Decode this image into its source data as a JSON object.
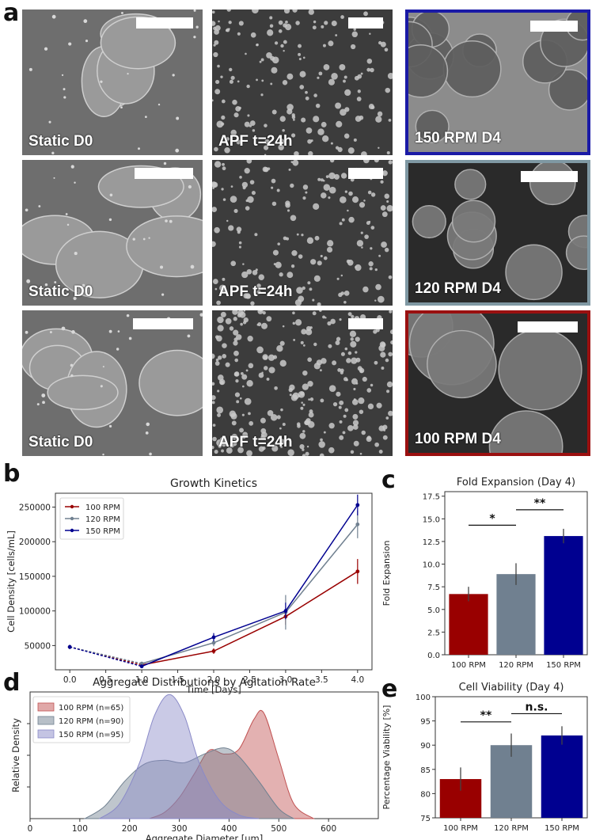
{
  "panel_letters": {
    "a": "a",
    "b": "b",
    "c": "c",
    "d": "d",
    "e": "e"
  },
  "micrographs": [
    {
      "label": "Static D0",
      "border": "none",
      "texture": "colony"
    },
    {
      "label": "APF t=24h",
      "border": "none",
      "texture": "dots"
    },
    {
      "label": "150 RPM D4",
      "border": "#1a1aa6",
      "texture": "spheres"
    },
    {
      "label": "Static D0",
      "border": "none",
      "texture": "colony"
    },
    {
      "label": "APF t=24h",
      "border": "none",
      "texture": "dots"
    },
    {
      "label": "120 RPM D4",
      "border": "#7f98a3",
      "texture": "spheres"
    },
    {
      "label": "Static D0",
      "border": "none",
      "texture": "colony"
    },
    {
      "label": "APF t=24h",
      "border": "none",
      "texture": "dots"
    },
    {
      "label": "100 RPM D4",
      "border": "#9a1010",
      "texture": "spheres"
    }
  ],
  "colors": {
    "rpm100": "#990000",
    "rpm120": "#708090",
    "rpm150": "#000090"
  },
  "chart_data": [
    {
      "id": "b",
      "type": "line",
      "title": "Growth Kinetics",
      "xlabel": "Time [Days]",
      "ylabel": "Cell Density [cells/mL]",
      "x": [
        0,
        1,
        2,
        3,
        4
      ],
      "xticks": [
        "0.0",
        "0.5",
        "1.0",
        "1.5",
        "2.0",
        "2.5",
        "3.0",
        "3.5",
        "4.0"
      ],
      "yticks": [
        "50000",
        "100000",
        "150000",
        "200000",
        "250000"
      ],
      "xlim": [
        -0.2,
        4.2
      ],
      "ylim": [
        15000,
        270000
      ],
      "legend": "top-left",
      "series": [
        {
          "name": "100 RPM",
          "values": [
            48000,
            22000,
            42000,
            92000,
            157000
          ],
          "err": [
            3000,
            2000,
            4000,
            12000,
            18000
          ],
          "color": "#990000"
        },
        {
          "name": "120 RPM",
          "values": [
            48000,
            24000,
            54000,
            98000,
            225000
          ],
          "err": [
            3000,
            2000,
            5000,
            25000,
            20000
          ],
          "color": "#708090"
        },
        {
          "name": "150 RPM",
          "values": [
            48000,
            20000,
            62000,
            100000,
            253000
          ],
          "err": [
            3000,
            2000,
            6000,
            12000,
            15000
          ],
          "color": "#000090"
        }
      ]
    },
    {
      "id": "c",
      "type": "bar",
      "title": "Fold Expansion (Day 4)",
      "ylabel": "Fold Expansion",
      "categories": [
        "100 RPM",
        "120 RPM",
        "150 RPM"
      ],
      "values": [
        6.7,
        8.9,
        13.1
      ],
      "err": [
        0.8,
        1.2,
        0.8
      ],
      "colors": [
        "#990000",
        "#708090",
        "#000090"
      ],
      "yticks": [
        "0.0",
        "2.5",
        "5.0",
        "7.5",
        "10.0",
        "12.5",
        "15.0",
        "17.5"
      ],
      "ylim": [
        0,
        18
      ],
      "annotations": [
        {
          "from": 0,
          "to": 1,
          "y": 14.3,
          "text": "*"
        },
        {
          "from": 1,
          "to": 2,
          "y": 16.0,
          "text": "**"
        }
      ]
    },
    {
      "id": "d",
      "type": "area",
      "title": "Aggregate Distributions by Agitation Rate",
      "xlabel": "Aggregate Diameter [μm]",
      "ylabel": "Relative Density",
      "xticks": [
        "0",
        "100",
        "200",
        "300",
        "400",
        "500",
        "600"
      ],
      "xlim": [
        0,
        700
      ],
      "legend": "top-left",
      "series": [
        {
          "name": "100 RPM (n=65)",
          "color": "#c15252",
          "x": [
            240,
            270,
            300,
            330,
            360,
            390,
            420,
            450,
            470,
            500,
            530,
            570
          ],
          "y": [
            0,
            0.05,
            0.17,
            0.36,
            0.55,
            0.52,
            0.56,
            0.8,
            0.85,
            0.48,
            0.12,
            0
          ]
        },
        {
          "name": "120 RPM (n=90)",
          "color": "#708090",
          "x": [
            110,
            150,
            190,
            230,
            270,
            310,
            350,
            390,
            420,
            460,
            500,
            530
          ],
          "y": [
            0,
            0.1,
            0.3,
            0.44,
            0.47,
            0.45,
            0.52,
            0.57,
            0.5,
            0.3,
            0.08,
            0
          ]
        },
        {
          "name": "150 RPM (n=95)",
          "color": "#8a8ac8",
          "x": [
            140,
            180,
            220,
            250,
            280,
            310,
            340,
            380,
            420,
            460
          ],
          "y": [
            0,
            0.12,
            0.45,
            0.83,
            1.0,
            0.83,
            0.45,
            0.15,
            0.03,
            0
          ]
        }
      ]
    },
    {
      "id": "e",
      "type": "bar",
      "title": "Cell Viability (Day 4)",
      "ylabel": "Percentage Viability [%]",
      "categories": [
        "100 RPM",
        "120 RPM",
        "150 RPM"
      ],
      "values": [
        83,
        90,
        92
      ],
      "err": [
        2.4,
        2.4,
        1.9
      ],
      "colors": [
        "#990000",
        "#708090",
        "#000090"
      ],
      "yticks": [
        "75",
        "80",
        "85",
        "90",
        "95",
        "100"
      ],
      "ylim": [
        75,
        100
      ],
      "annotations": [
        {
          "from": 0,
          "to": 1,
          "y": 94.8,
          "text": "**"
        },
        {
          "from": 1,
          "to": 2,
          "y": 96.5,
          "text": "n.s."
        }
      ]
    }
  ]
}
